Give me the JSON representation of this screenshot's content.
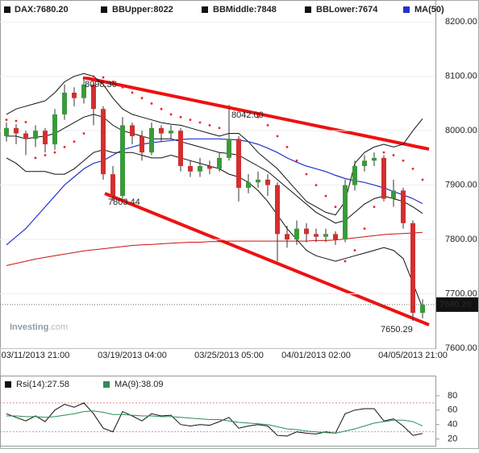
{
  "chart_data": [
    {
      "type": "candlestick",
      "name": "DAX:7680.20",
      "categories": [
        null,
        null,
        null,
        "03/11/2013 21:00",
        null,
        null,
        null,
        null,
        null,
        null,
        null,
        null,
        null,
        "03/19/2013 04:00",
        null,
        null,
        null,
        null,
        null,
        null,
        null,
        null,
        null,
        "03/25/2013 05:00",
        null,
        null,
        null,
        null,
        null,
        null,
        null,
        null,
        "04/01/2013 02:00",
        null,
        null,
        null,
        null,
        null,
        null,
        null,
        null,
        null,
        "04/05/2013 21:00",
        null
      ],
      "open": [
        7990,
        8005,
        7995,
        7985,
        8000,
        7975,
        8030,
        8070,
        8060,
        8085,
        8040,
        7920,
        7880,
        8010,
        7990,
        7960,
        8005,
        7995,
        8000,
        7935,
        7925,
        7935,
        7930,
        7950,
        7985,
        7895,
        7905,
        7910,
        7900,
        7810,
        7800,
        7820,
        7810,
        7805,
        7810,
        7800,
        7900,
        7935,
        7945,
        7950,
        7875,
        7890,
        7830,
        7665
      ],
      "high": [
        8015,
        8012,
        8000,
        8010,
        8005,
        8040,
        8085,
        8080,
        8098.36,
        8090,
        8045,
        7935,
        8025,
        8015,
        8000,
        8015,
        8010,
        8010,
        8005,
        7945,
        7950,
        7945,
        7960,
        8042,
        7990,
        7920,
        7925,
        7920,
        7905,
        7825,
        7835,
        7830,
        7820,
        7820,
        7815,
        7910,
        7945,
        7955,
        7960,
        7955,
        7910,
        7895,
        7835,
        7690
      ],
      "low": [
        7980,
        7975,
        7955,
        7970,
        7960,
        7965,
        8020,
        8045,
        8050,
        8010,
        7910,
        7870,
        7875,
        7975,
        7945,
        7955,
        7980,
        7985,
        7925,
        7915,
        7915,
        7920,
        7925,
        7945,
        7870,
        7885,
        7895,
        7880,
        7760,
        7785,
        7790,
        7795,
        7795,
        7795,
        7790,
        7795,
        7890,
        7925,
        7935,
        7870,
        7860,
        7820,
        7650.29,
        7655
      ],
      "close": [
        8005,
        7995,
        7985,
        8000,
        7975,
        8030,
        8070,
        8060,
        8085,
        8040,
        7920,
        7880,
        8010,
        7990,
        7960,
        8005,
        7995,
        8000,
        7935,
        7925,
        7935,
        7930,
        7950,
        7985,
        7895,
        7905,
        7910,
        7900,
        7810,
        7800,
        7820,
        7810,
        7805,
        7810,
        7800,
        7900,
        7935,
        7945,
        7950,
        7875,
        7890,
        7830,
        7665,
        7680.2
      ],
      "up_color": "#3a9a3a",
      "down_color": "#d32f2f",
      "series": [
        {
          "name": "BBUpper:8022",
          "color": "#111111",
          "values": [
            8030,
            8040,
            8045,
            8050,
            8055,
            8070,
            8090,
            8100,
            8105,
            8100,
            8085,
            8060,
            8040,
            8030,
            8025,
            8020,
            8015,
            8012,
            8010,
            8005,
            8000,
            7995,
            7990,
            7995,
            7995,
            7980,
            7960,
            7945,
            7930,
            7910,
            7890,
            7870,
            7860,
            7850,
            7845,
            7870,
            7940,
            7960,
            7970,
            7975,
            7970,
            7975,
            8000,
            8022
          ]
        },
        {
          "name": "BBMiddle:7848",
          "color": "#111111",
          "values": [
            7990,
            7990,
            7985,
            7988,
            7990,
            7995,
            8005,
            8015,
            8025,
            8030,
            8025,
            8010,
            8000,
            7995,
            7990,
            7985,
            7985,
            7985,
            7980,
            7975,
            7970,
            7965,
            7960,
            7958,
            7955,
            7945,
            7935,
            7925,
            7910,
            7895,
            7880,
            7865,
            7850,
            7840,
            7830,
            7835,
            7850,
            7865,
            7875,
            7880,
            7875,
            7870,
            7860,
            7848
          ]
        },
        {
          "name": "BBLower:7674",
          "color": "#111111",
          "values": [
            7950,
            7940,
            7925,
            7925,
            7925,
            7920,
            7920,
            7930,
            7945,
            7960,
            7965,
            7960,
            7960,
            7960,
            7955,
            7950,
            7950,
            7955,
            7950,
            7945,
            7940,
            7935,
            7930,
            7920,
            7915,
            7905,
            7890,
            7870,
            7845,
            7820,
            7800,
            7780,
            7770,
            7765,
            7760,
            7765,
            7770,
            7775,
            7780,
            7785,
            7780,
            7765,
            7720,
            7674
          ]
        },
        {
          "name": "MA(50)",
          "color": "#2233cc",
          "values": [
            7790,
            7805,
            7820,
            7840,
            7860,
            7880,
            7900,
            7915,
            7930,
            7940,
            7945,
            7955,
            7965,
            7970,
            7975,
            7978,
            7980,
            7982,
            7984,
            7985,
            7985,
            7985,
            7985,
            7984,
            7983,
            7980,
            7975,
            7968,
            7960,
            7950,
            7942,
            7935,
            7930,
            7925,
            7918,
            7912,
            7908,
            7905,
            7900,
            7895,
            7888,
            7882,
            7875,
            7866
          ]
        },
        {
          "color": "#cc1111",
          "values": [
            7752,
            7756,
            7760,
            7764,
            7767,
            7770,
            7773,
            7776,
            7779,
            7781,
            7783,
            7785,
            7787,
            7789,
            7790,
            7791,
            7792,
            7793,
            7794,
            7795,
            7795,
            7796,
            7796,
            7797,
            7797,
            7797,
            7797,
            7797,
            7797,
            7797,
            7797,
            7797,
            7798,
            7798,
            7799,
            7801,
            7803,
            7805,
            7807,
            7809,
            7810,
            7811,
            7812,
            7813
          ]
        },
        {
          "color": "#ee2222",
          "style": "dots",
          "values": [
            8020,
            8018,
            8016,
            7950,
            7955,
            7960,
            7970,
            7980,
            7995,
            8100,
            8098,
            8090,
            8080,
            8070,
            8060,
            8050,
            8040,
            8030,
            8025,
            8020,
            8015,
            8010,
            8005,
            8045,
            8040,
            8035,
            8025,
            8010,
            7990,
            7970,
            7945,
            7920,
            7900,
            7880,
            7860,
            7760,
            7780,
            7820,
            7860,
            7960,
            7955,
            7945,
            7930,
            7910
          ]
        }
      ],
      "ylim": [
        7600,
        8233
      ],
      "yticks": [
        {
          "value": 7600,
          "label": "7600.00"
        },
        {
          "value": 7700,
          "label": "7700.00"
        },
        {
          "value": 7800,
          "label": "7800.00"
        },
        {
          "value": 7900,
          "label": "7900.00"
        },
        {
          "value": 8000,
          "label": "8000.00"
        },
        {
          "value": 8100,
          "label": "8100.00"
        },
        {
          "value": 8200,
          "label": "8200.00"
        }
      ],
      "grid": true,
      "last_label": "7680.20",
      "annotations": [
        "8098.36",
        "8042.00",
        "7803.44",
        "7650.29"
      ],
      "watermark": [
        "Investing",
        ".com"
      ]
    },
    {
      "type": "line",
      "series": [
        {
          "name": "Rsi(14):27.58",
          "color": "#111111",
          "values": [
            55,
            50,
            45,
            52,
            44,
            60,
            68,
            64,
            70,
            55,
            35,
            30,
            58,
            52,
            45,
            55,
            52,
            53,
            40,
            38,
            40,
            39,
            44,
            50,
            35,
            38,
            40,
            38,
            25,
            24,
            30,
            28,
            27,
            30,
            28,
            55,
            60,
            62,
            62,
            45,
            48,
            38,
            25,
            27.58
          ]
        },
        {
          "name": "MA(9):38.09",
          "color": "#2e8b57",
          "values": [
            52,
            52,
            51,
            51,
            50,
            51,
            53,
            55,
            58,
            59,
            57,
            54,
            54,
            53,
            52,
            52,
            51,
            51,
            50,
            49,
            48,
            47,
            47,
            45,
            43,
            42,
            41,
            40,
            37,
            34,
            33,
            31,
            30,
            29,
            28,
            31,
            34,
            38,
            42,
            44,
            46,
            46,
            44,
            38.09
          ]
        }
      ],
      "ylim": [
        14,
        100
      ],
      "yticks": [
        20,
        40,
        60,
        80
      ]
    }
  ]
}
